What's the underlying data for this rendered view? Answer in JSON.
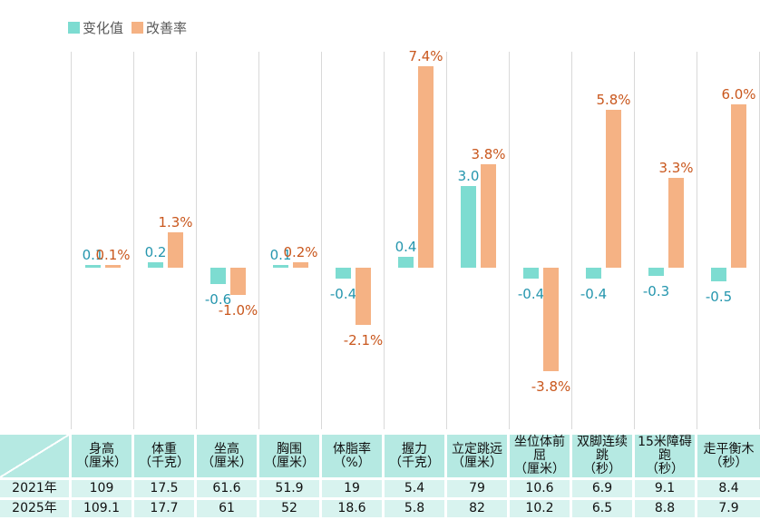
{
  "colors": {
    "change_bar": "#7ddcd1",
    "rate_bar": "#f5b284",
    "change_label": "#2596ae",
    "rate_label": "#c9571d",
    "gridline": "#d9d9d9",
    "legend_text": "#595959",
    "table_header_bg": "#b5e9e2",
    "table_row_bg": "#d8f3ef"
  },
  "chart_data": {
    "type": "bar",
    "title": "",
    "legend_position": "top-left",
    "grid": "vertical-only",
    "baseline": 0,
    "categories": [
      "身高",
      "体重",
      "坐高",
      "胸围",
      "体脂率",
      "握力",
      "立定跳远",
      "坐位体前屈",
      "双脚连续跳",
      "15米障碍跑",
      "走平衡木"
    ],
    "series": [
      {
        "name": "变化值",
        "values": [
          0.1,
          0.2,
          -0.6,
          0.1,
          -0.4,
          0.4,
          3.0,
          -0.4,
          -0.4,
          -0.3,
          -0.5
        ],
        "labels": [
          "0.1",
          "0.2",
          "-0.6",
          "0.1",
          "-0.4",
          "0.4",
          "3.0",
          "-0.4",
          "-0.4",
          "-0.3",
          "-0.5"
        ]
      },
      {
        "name": "改善率",
        "values": [
          0.1,
          1.3,
          -1.0,
          0.2,
          -2.1,
          7.4,
          3.8,
          -3.8,
          5.8,
          3.3,
          6.0
        ],
        "labels": [
          "0.1%",
          "1.3%",
          "-1.0%",
          "0.2%",
          "-2.1%",
          "7.4%",
          "3.8%",
          "-3.8%",
          "5.8%",
          "3.3%",
          "6.0%"
        ]
      }
    ]
  },
  "table": {
    "columns": [
      {
        "name": "身高",
        "unit": "（厘米）"
      },
      {
        "name": "体重",
        "unit": "（千克）"
      },
      {
        "name": "坐高",
        "unit": "（厘米）"
      },
      {
        "name": "胸围",
        "unit": "（厘米）"
      },
      {
        "name": "体脂率",
        "unit": "（%）"
      },
      {
        "name": "握力",
        "unit": "（千克）"
      },
      {
        "name": "立定跳远",
        "unit": "（厘米）"
      },
      {
        "name": "坐位体前屈",
        "unit": "（厘米）"
      },
      {
        "name": "双脚连续跳",
        "unit": "（秒）"
      },
      {
        "name": "15米障碍跑",
        "unit": "（秒）"
      },
      {
        "name": "走平衡木",
        "unit": "（秒）"
      }
    ],
    "rows": [
      {
        "label": "2021年",
        "values": [
          "109",
          "17.5",
          "61.6",
          "51.9",
          "19",
          "5.4",
          "79",
          "10.6",
          "6.9",
          "9.1",
          "8.4"
        ]
      },
      {
        "label": "2025年",
        "values": [
          "109.1",
          "17.7",
          "61",
          "52",
          "18.6",
          "5.8",
          "82",
          "10.2",
          "6.5",
          "8.8",
          "7.9"
        ]
      }
    ]
  }
}
